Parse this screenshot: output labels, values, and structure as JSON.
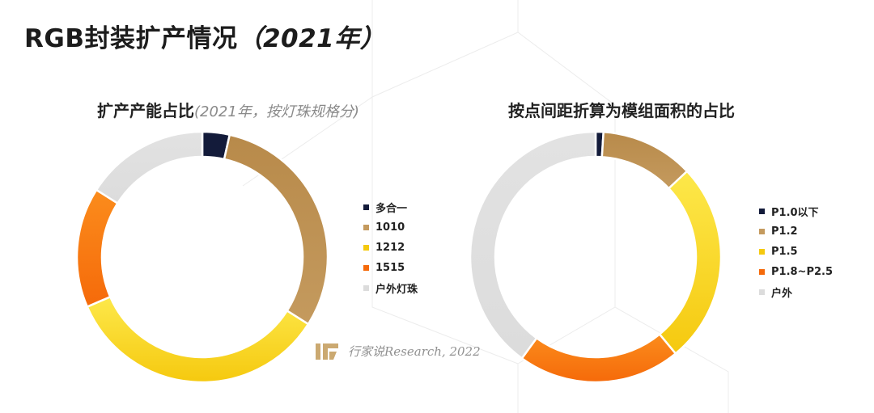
{
  "page": {
    "title_main": "RGB封装扩产情况",
    "title_year": "（2021年）"
  },
  "watermark": {
    "text": "行家说Research, 2022"
  },
  "chart_data": [
    {
      "type": "pie",
      "donut": true,
      "title": "扩产产能占比",
      "subtitle": "(2021年，按灯珠规格分)",
      "categories": [
        "多合一",
        "1010",
        "1212",
        "1515",
        "户外灯珠"
      ],
      "values": [
        3.5,
        30.5,
        34.5,
        15.5,
        16
      ],
      "colors": [
        "#131b3a",
        "#c49a5e",
        "#f5c90f",
        "#f56a0a",
        "#dcdcdc"
      ],
      "gradient_to": [
        "#131b3a",
        "#b88a4a",
        "#fde84a",
        "#fb8c1c",
        "#e2e2e2"
      ],
      "legend_position": "right"
    },
    {
      "type": "pie",
      "donut": true,
      "title": "按点间距折算为模组面积的占比",
      "subtitle": "",
      "categories": [
        "P1.0以下",
        "P1.2",
        "P1.5",
        "P1.8~P2.5",
        "户外"
      ],
      "values": [
        1,
        12,
        26,
        21,
        40
      ],
      "colors": [
        "#131b3a",
        "#c49a5e",
        "#f5c90f",
        "#f56a0a",
        "#dcdcdc"
      ],
      "gradient_to": [
        "#131b3a",
        "#b88a4a",
        "#fde84a",
        "#fb8c1c",
        "#e2e2e2"
      ],
      "legend_position": "right"
    }
  ]
}
